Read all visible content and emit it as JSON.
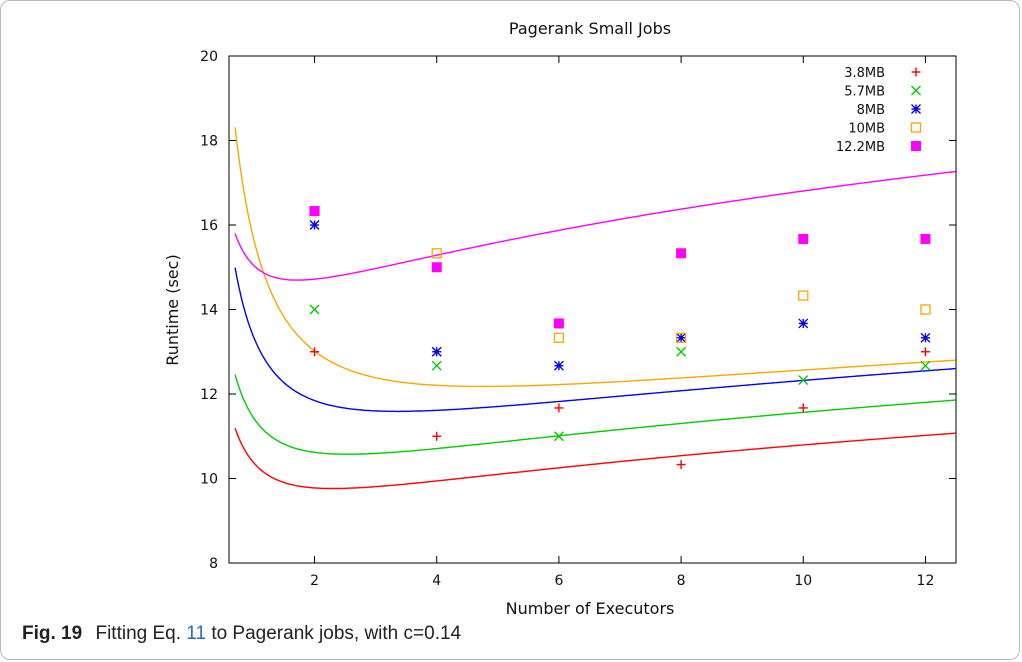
{
  "chart_data": {
    "type": "scatter",
    "title": "Pagerank Small Jobs",
    "xlabel": "Number of Executors",
    "ylabel": "Runtime (sec)",
    "xlim": [
      0.6,
      12.5
    ],
    "ylim": [
      8,
      20
    ],
    "x_ticks": [
      2,
      4,
      6,
      8,
      10,
      12
    ],
    "y_ticks": [
      8,
      10,
      12,
      14,
      16,
      18,
      20
    ],
    "legend_position": "top-right",
    "grid": false,
    "x": [
      2,
      4,
      6,
      8,
      10,
      12
    ],
    "series": [
      {
        "name": "3.8MB",
        "color": "#ff0000",
        "marker": "plus",
        "values": [
          13.0,
          11.0,
          11.67,
          10.33,
          11.67,
          13.0
        ],
        "fit": {
          "a": 2.76,
          "b": 7.62,
          "c": 0.14
        }
      },
      {
        "name": "5.7MB",
        "color": "#00cc00",
        "marker": "cross",
        "values": [
          14.0,
          12.67,
          11.0,
          13.0,
          12.33,
          12.67
        ],
        "fit": {
          "a": 3.3,
          "b": 8.14,
          "c": 0.14
        }
      },
      {
        "name": "8MB",
        "color": "#0000ee",
        "marker": "star",
        "values": [
          16.0,
          13.0,
          12.67,
          13.33,
          13.67,
          13.33
        ],
        "fit": {
          "a": 4.78,
          "b": 8.58,
          "c": 0.14
        }
      },
      {
        "name": "10MB",
        "color": "#ffa500",
        "marker": "square-open",
        "values": [
          16.33,
          15.33,
          13.33,
          13.33,
          14.33,
          14.0
        ],
        "fit": {
          "a": 7.1,
          "b": 8.59,
          "c": 0.14
        }
      },
      {
        "name": "12.2MB",
        "color": "#ff00ff",
        "marker": "square-filled",
        "values": [
          16.33,
          15.0,
          13.67,
          15.33,
          15.67,
          15.67
        ],
        "fit": {
          "a": 3.1,
          "b": 11.95,
          "c": 0.14
        }
      }
    ]
  },
  "caption": {
    "figure_label": "Fig. 19",
    "text_before": "Fitting Eq.",
    "equation_ref": "11",
    "text_after": "to Pagerank jobs, with c=0.14"
  }
}
